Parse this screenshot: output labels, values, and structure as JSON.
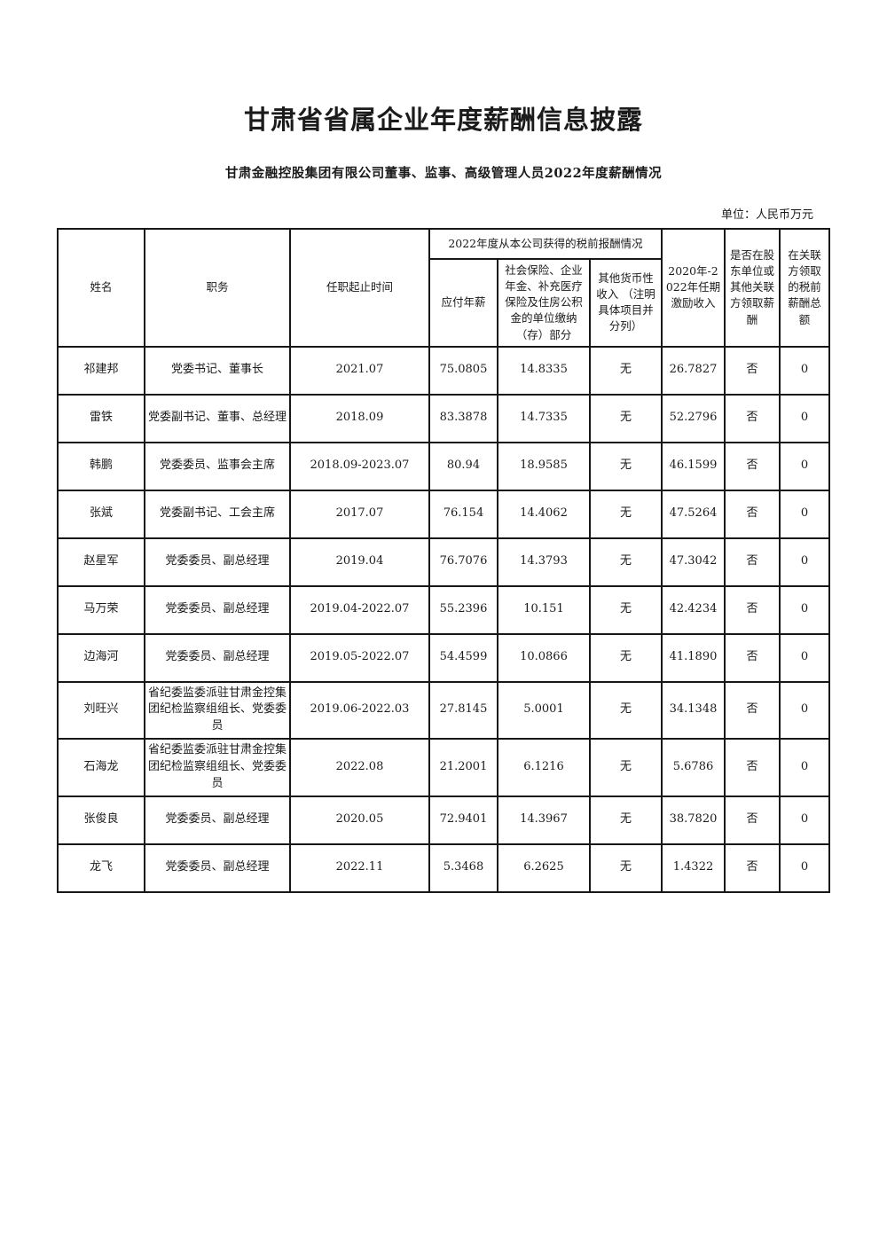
{
  "page": {
    "title": "甘肃省省属企业年度薪酬信息披露",
    "subtitle": "甘肃金融控股集团有限公司董事、监事、高级管理人员2022年度薪酬情况",
    "unit_note": "单位：人民币万元"
  },
  "table": {
    "headers": {
      "name": "姓名",
      "position": "职务",
      "tenure": "任职起止时间",
      "group_2022": "2022年度从本公司获得的税前报酬情况",
      "salary": "应付年薪",
      "social_insurance": "社会保险、企业年金、补充医疗保险及住房公积金的单位缴纳（存）部分",
      "other_income": "其他货币性收入 （注明具体项目并分列）",
      "incentive": "2020年-2022年任期激励收入",
      "related_pay": "是否在股东单位或其他关联方领取薪酬",
      "related_total": "在关联方领取的税前薪酬总额"
    },
    "row_keys": [
      "name",
      "position",
      "tenure",
      "salary",
      "social_insurance",
      "other_income",
      "incentive",
      "related_pay",
      "related_total"
    ],
    "rows": [
      {
        "name": "祁建邦",
        "position": "党委书记、董事长",
        "tenure": "2021.07",
        "salary": "75.0805",
        "social_insurance": "14.8335",
        "other_income": "无",
        "incentive": "26.7827",
        "related_pay": "否",
        "related_total": "0"
      },
      {
        "name": "雷铁",
        "position": "党委副书记、董事、总经理",
        "tenure": "2018.09",
        "salary": "83.3878",
        "social_insurance": "14.7335",
        "other_income": "无",
        "incentive": "52.2796",
        "related_pay": "否",
        "related_total": "0"
      },
      {
        "name": "韩鹏",
        "position": "党委委员、监事会主席",
        "tenure": "2018.09-2023.07",
        "salary": "80.94",
        "social_insurance": "18.9585",
        "other_income": "无",
        "incentive": "46.1599",
        "related_pay": "否",
        "related_total": "0"
      },
      {
        "name": "张斌",
        "position": "党委副书记、工会主席",
        "tenure": "2017.07",
        "salary": "76.154",
        "social_insurance": "14.4062",
        "other_income": "无",
        "incentive": "47.5264",
        "related_pay": "否",
        "related_total": "0"
      },
      {
        "name": "赵星军",
        "position": "党委委员、副总经理",
        "tenure": "2019.04",
        "salary": "76.7076",
        "social_insurance": "14.3793",
        "other_income": "无",
        "incentive": "47.3042",
        "related_pay": "否",
        "related_total": "0"
      },
      {
        "name": "马万荣",
        "position": "党委委员、副总经理",
        "tenure": "2019.04-2022.07",
        "salary": "55.2396",
        "social_insurance": "10.151",
        "other_income": "无",
        "incentive": "42.4234",
        "related_pay": "否",
        "related_total": "0"
      },
      {
        "name": "边海河",
        "position": "党委委员、副总经理",
        "tenure": "2019.05-2022.07",
        "salary": "54.4599",
        "social_insurance": "10.0866",
        "other_income": "无",
        "incentive": "41.1890",
        "related_pay": "否",
        "related_total": "0"
      },
      {
        "name": "刘旺兴",
        "position": "省纪委监委派驻甘肃金控集团纪检监察组组长、党委委员",
        "tenure": "2019.06-2022.03",
        "salary": "27.8145",
        "social_insurance": "5.0001",
        "other_income": "无",
        "incentive": "34.1348",
        "related_pay": "否",
        "related_total": "0"
      },
      {
        "name": "石海龙",
        "position": "省纪委监委派驻甘肃金控集团纪检监察组组长、党委委员",
        "tenure": "2022.08",
        "salary": "21.2001",
        "social_insurance": "6.1216",
        "other_income": "无",
        "incentive": "5.6786",
        "related_pay": "否",
        "related_total": "0"
      },
      {
        "name": "张俊良",
        "position": "党委委员、副总经理",
        "tenure": "2020.05",
        "salary": "72.9401",
        "social_insurance": "14.3967",
        "other_income": "无",
        "incentive": "38.7820",
        "related_pay": "否",
        "related_total": "0"
      },
      {
        "name": "龙飞",
        "position": "党委委员、副总经理",
        "tenure": "2022.11",
        "salary": "5.3468",
        "social_insurance": "6.2625",
        "other_income": "无",
        "incentive": "1.4322",
        "related_pay": "否",
        "related_total": "0"
      }
    ]
  }
}
